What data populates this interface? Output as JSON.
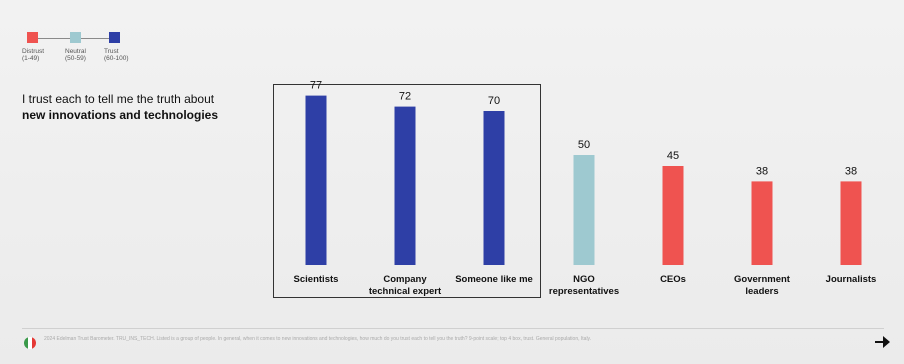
{
  "legend": {
    "items": [
      {
        "label": "Distrust\n(1-49)",
        "color": "#ef5350"
      },
      {
        "label": "Neutral\n(50-59)",
        "color": "#9ec9d0"
      },
      {
        "label": "Trust\n(60-100)",
        "color": "#2e3fa6"
      }
    ]
  },
  "headline": {
    "line1": "I trust each to tell me the truth about",
    "line2": "new innovations and technologies"
  },
  "chart_data": {
    "type": "bar",
    "categories": [
      "Scientists",
      "Company technical expert",
      "Someone like me",
      "NGO representatives",
      "CEOs",
      "Government leaders",
      "Journalists"
    ],
    "category_lines": [
      [
        "Scientists"
      ],
      [
        "Company",
        "technical expert"
      ],
      [
        "Someone like me"
      ],
      [
        "NGO",
        "representatives"
      ],
      [
        "CEOs"
      ],
      [
        "Government",
        "leaders"
      ],
      [
        "Journalists"
      ]
    ],
    "values": [
      77,
      72,
      70,
      50,
      45,
      38,
      38
    ],
    "colors": [
      "#2e3fa6",
      "#2e3fa6",
      "#2e3fa6",
      "#9ec9d0",
      "#ef5350",
      "#ef5350",
      "#ef5350"
    ],
    "ylim": [
      0,
      100
    ],
    "grid": false,
    "highlighted": [
      "Scientists",
      "Company technical expert",
      "Someone like me"
    ]
  },
  "footer": {
    "note": "2024 Edelman Trust Barometer. TRU_INS_TECH. Listed is a group of people. In general, when it comes to new innovations and technologies, how much do you trust each to tell you the truth? 9-point scale; top 4 box, trust. General population, Italy.",
    "flag_colors": [
      "#3a9a4a",
      "#ffffff",
      "#e53935"
    ]
  }
}
